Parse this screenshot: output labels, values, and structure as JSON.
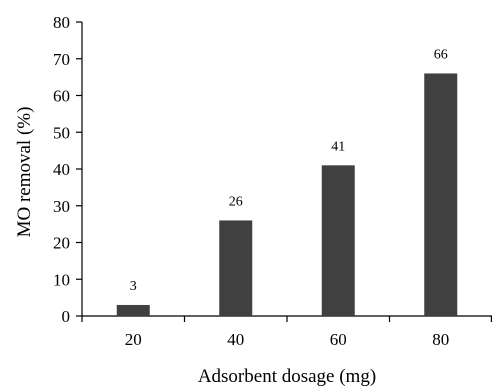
{
  "chart_data": {
    "type": "bar",
    "categories": [
      "20",
      "40",
      "60",
      "80"
    ],
    "values": [
      3,
      26,
      41,
      66
    ],
    "data_labels": [
      "3",
      "26",
      "41",
      "66"
    ],
    "xlabel": "Adsorbent dosage (mg)",
    "ylabel": "MO removal (%)",
    "ylim": [
      0,
      80
    ],
    "yticks": [
      0,
      10,
      20,
      30,
      40,
      50,
      60,
      70,
      80
    ],
    "grid": false,
    "legend": "none",
    "bar_color": "#404040"
  }
}
